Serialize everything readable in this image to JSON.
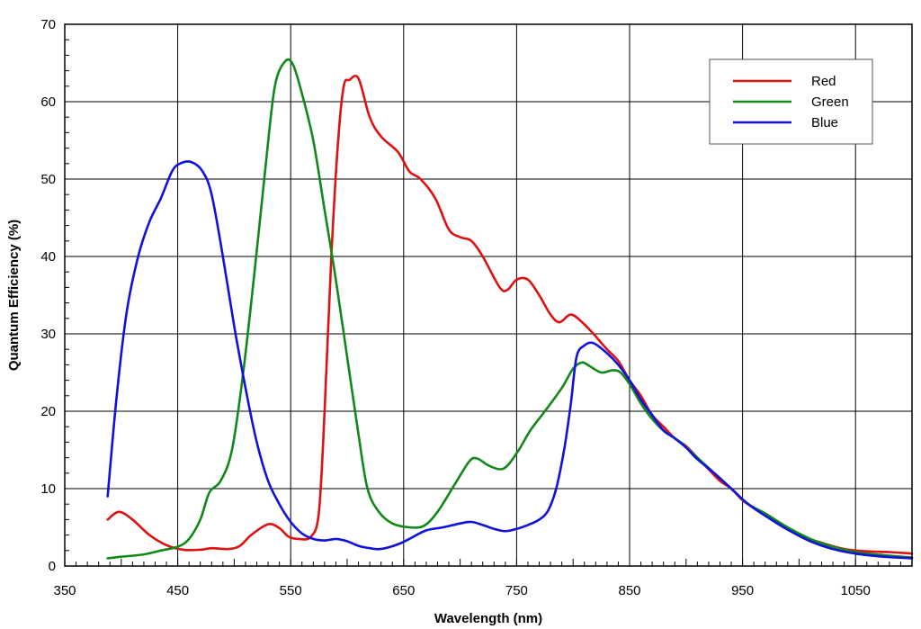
{
  "chart_data": {
    "type": "line",
    "title": "",
    "xlabel": "Wavelength (nm)",
    "ylabel": "Quantum Efficiency (%)",
    "xlim": [
      350,
      1100
    ],
    "ylim": [
      0,
      70
    ],
    "x_ticks": [
      350,
      450,
      550,
      650,
      750,
      850,
      950,
      1050
    ],
    "y_ticks": [
      0,
      10,
      20,
      30,
      40,
      50,
      60,
      70
    ],
    "grid": true,
    "legend_position": "top-right",
    "series": [
      {
        "name": "Red",
        "color": "#dd1111",
        "points": [
          [
            388,
            6
          ],
          [
            398,
            7
          ],
          [
            410,
            6
          ],
          [
            425,
            4
          ],
          [
            440,
            2.7
          ],
          [
            455,
            2.1
          ],
          [
            470,
            2.1
          ],
          [
            480,
            2.3
          ],
          [
            495,
            2.2
          ],
          [
            505,
            2.6
          ],
          [
            515,
            4
          ],
          [
            530,
            5.4
          ],
          [
            540,
            4.9
          ],
          [
            548,
            3.8
          ],
          [
            557,
            3.5
          ],
          [
            568,
            3.8
          ],
          [
            575,
            7
          ],
          [
            580,
            20
          ],
          [
            586,
            40
          ],
          [
            592,
            55
          ],
          [
            597,
            62
          ],
          [
            602,
            62.8
          ],
          [
            610,
            63
          ],
          [
            620,
            58
          ],
          [
            630,
            55.5
          ],
          [
            645,
            53.5
          ],
          [
            655,
            51
          ],
          [
            665,
            50
          ],
          [
            678,
            47.5
          ],
          [
            690,
            43.5
          ],
          [
            700,
            42.5
          ],
          [
            710,
            42
          ],
          [
            720,
            40
          ],
          [
            735,
            36
          ],
          [
            742,
            35.7
          ],
          [
            750,
            37
          ],
          [
            760,
            37
          ],
          [
            770,
            35
          ],
          [
            780,
            32.5
          ],
          [
            788,
            31.5
          ],
          [
            798,
            32.5
          ],
          [
            808,
            31.5
          ],
          [
            818,
            30
          ],
          [
            830,
            28
          ],
          [
            840,
            26.5
          ],
          [
            850,
            24
          ],
          [
            860,
            22
          ],
          [
            870,
            19.5
          ],
          [
            880,
            18
          ],
          [
            890,
            16.5
          ],
          [
            900,
            15.5
          ],
          [
            910,
            14
          ],
          [
            920,
            12.5
          ],
          [
            930,
            11
          ],
          [
            940,
            10
          ],
          [
            950,
            8.5
          ],
          [
            960,
            7.5
          ],
          [
            980,
            5.7
          ],
          [
            1000,
            4
          ],
          [
            1020,
            3
          ],
          [
            1040,
            2.2
          ],
          [
            1060,
            1.9
          ],
          [
            1080,
            1.8
          ],
          [
            1100,
            1.6
          ]
        ]
      },
      {
        "name": "Green",
        "color": "#11881a",
        "points": [
          [
            388,
            1
          ],
          [
            400,
            1.2
          ],
          [
            420,
            1.5
          ],
          [
            435,
            2
          ],
          [
            450,
            2.5
          ],
          [
            460,
            3.5
          ],
          [
            470,
            6
          ],
          [
            478,
            9.5
          ],
          [
            488,
            11
          ],
          [
            498,
            15
          ],
          [
            508,
            25
          ],
          [
            518,
            38
          ],
          [
            528,
            52
          ],
          [
            536,
            62
          ],
          [
            545,
            65.2
          ],
          [
            552,
            64.8
          ],
          [
            560,
            61
          ],
          [
            570,
            55
          ],
          [
            580,
            46
          ],
          [
            590,
            37
          ],
          [
            600,
            27
          ],
          [
            610,
            17
          ],
          [
            618,
            10
          ],
          [
            628,
            7
          ],
          [
            640,
            5.5
          ],
          [
            655,
            5
          ],
          [
            668,
            5.2
          ],
          [
            680,
            7
          ],
          [
            695,
            10.5
          ],
          [
            708,
            13.5
          ],
          [
            715,
            13.9
          ],
          [
            725,
            13
          ],
          [
            735,
            12.5
          ],
          [
            742,
            13
          ],
          [
            752,
            15
          ],
          [
            762,
            17.5
          ],
          [
            775,
            20
          ],
          [
            790,
            23
          ],
          [
            800,
            25.5
          ],
          [
            808,
            26.3
          ],
          [
            815,
            25.8
          ],
          [
            825,
            25
          ],
          [
            835,
            25.3
          ],
          [
            842,
            25
          ],
          [
            850,
            23.5
          ],
          [
            860,
            21
          ],
          [
            870,
            19
          ],
          [
            880,
            17.5
          ],
          [
            895,
            16
          ],
          [
            910,
            14
          ],
          [
            925,
            12
          ],
          [
            940,
            10
          ],
          [
            955,
            8
          ],
          [
            970,
            6.8
          ],
          [
            990,
            5
          ],
          [
            1010,
            3.5
          ],
          [
            1030,
            2.5
          ],
          [
            1050,
            1.8
          ],
          [
            1075,
            1.4
          ],
          [
            1100,
            1.1
          ]
        ]
      },
      {
        "name": "Blue",
        "color": "#1111dd",
        "points": [
          [
            388,
            9
          ],
          [
            396,
            22
          ],
          [
            405,
            33
          ],
          [
            415,
            40
          ],
          [
            425,
            44.5
          ],
          [
            435,
            47.5
          ],
          [
            445,
            51
          ],
          [
            452,
            52
          ],
          [
            462,
            52.2
          ],
          [
            472,
            51
          ],
          [
            480,
            48
          ],
          [
            490,
            40
          ],
          [
            500,
            31
          ],
          [
            510,
            23
          ],
          [
            520,
            16
          ],
          [
            530,
            11
          ],
          [
            540,
            8
          ],
          [
            550,
            5.7
          ],
          [
            560,
            4.2
          ],
          [
            570,
            3.5
          ],
          [
            580,
            3.3
          ],
          [
            590,
            3.5
          ],
          [
            600,
            3.2
          ],
          [
            610,
            2.6
          ],
          [
            620,
            2.3
          ],
          [
            630,
            2.2
          ],
          [
            645,
            2.8
          ],
          [
            655,
            3.5
          ],
          [
            670,
            4.6
          ],
          [
            685,
            5
          ],
          [
            700,
            5.5
          ],
          [
            710,
            5.7
          ],
          [
            720,
            5.3
          ],
          [
            730,
            4.8
          ],
          [
            740,
            4.5
          ],
          [
            750,
            4.8
          ],
          [
            760,
            5.3
          ],
          [
            770,
            6
          ],
          [
            778,
            7.2
          ],
          [
            785,
            10
          ],
          [
            792,
            15
          ],
          [
            798,
            21
          ],
          [
            803,
            27
          ],
          [
            810,
            28.5
          ],
          [
            818,
            28.8
          ],
          [
            830,
            27.5
          ],
          [
            840,
            26
          ],
          [
            850,
            24
          ],
          [
            860,
            21.5
          ],
          [
            870,
            19.5
          ],
          [
            880,
            17.5
          ],
          [
            890,
            16.5
          ],
          [
            900,
            15.3
          ],
          [
            910,
            13.8
          ],
          [
            925,
            12
          ],
          [
            940,
            10
          ],
          [
            955,
            8
          ],
          [
            970,
            6.5
          ],
          [
            990,
            4.7
          ],
          [
            1010,
            3.2
          ],
          [
            1030,
            2.2
          ],
          [
            1050,
            1.6
          ],
          [
            1075,
            1.2
          ],
          [
            1100,
            1
          ]
        ]
      }
    ]
  }
}
